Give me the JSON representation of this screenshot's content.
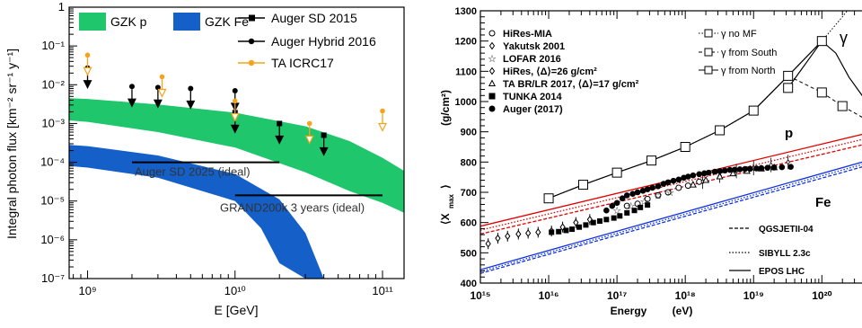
{
  "chart_data": [
    {
      "type": "scatter",
      "xlabel": "E [GeV]",
      "ylabel": "Integral photon flux [km⁻² sr⁻¹ y⁻¹]",
      "xscale": "log",
      "yscale": "log",
      "xlim": [
        750000000.0,
        140000000000.0
      ],
      "ylim": [
        1e-07,
        1
      ],
      "xticks": [
        {
          "v": 1000000000.0,
          "label": "10⁹"
        },
        {
          "v": 10000000000.0,
          "label": "10¹⁰"
        },
        {
          "v": 100000000000.0,
          "label": "10¹¹"
        }
      ],
      "yticks": [
        {
          "v": 1,
          "label": "1"
        },
        {
          "v": 0.1,
          "label": "10⁻¹"
        },
        {
          "v": 0.01,
          "label": "10⁻²"
        },
        {
          "v": 0.001,
          "label": "10⁻³"
        },
        {
          "v": 0.0001,
          "label": "10⁻⁴"
        },
        {
          "v": 1e-05,
          "label": "10⁻⁵"
        },
        {
          "v": 1e-06,
          "label": "10⁻⁶"
        },
        {
          "v": 1e-07,
          "label": "10⁻⁷"
        }
      ],
      "bands": [
        {
          "name": "GZK p",
          "color": "#1fc66c",
          "upper": [
            [
              750000000.0,
              0.0045
            ],
            [
              1000000000.0,
              0.0043
            ],
            [
              3000000000.0,
              0.0031
            ],
            [
              10000000000.0,
              0.0019
            ],
            [
              30000000000.0,
              0.00085
            ],
            [
              60000000000.0,
              0.00035
            ],
            [
              100000000000.0,
              0.00013
            ],
            [
              140000000000.0,
              6e-05
            ]
          ],
          "lower": [
            [
              750000000.0,
              0.0012
            ],
            [
              1000000000.0,
              0.0011
            ],
            [
              3000000000.0,
              0.0006
            ],
            [
              10000000000.0,
              0.00024
            ],
            [
              30000000000.0,
              5.5e-05
            ],
            [
              60000000000.0,
              1.8e-05
            ],
            [
              100000000000.0,
              9e-06
            ],
            [
              140000000000.0,
              5e-06
            ]
          ]
        },
        {
          "name": "GZK Fe",
          "color": "#1560c8",
          "upper": [
            [
              750000000.0,
              0.00028
            ],
            [
              1000000000.0,
              0.00026
            ],
            [
              3000000000.0,
              0.00015
            ],
            [
              10000000000.0,
              5e-05
            ],
            [
              20000000000.0,
              1.1e-05
            ],
            [
              30000000000.0,
              1.5e-06
            ],
            [
              40000000000.0,
              8e-08
            ],
            [
              45000000000.0,
              1e-08
            ]
          ],
          "lower": [
            [
              750000000.0,
              8e-05
            ],
            [
              1000000000.0,
              7.3e-05
            ],
            [
              3000000000.0,
              4e-05
            ],
            [
              10000000000.0,
              1e-05
            ],
            [
              15000000000.0,
              2e-06
            ],
            [
              20000000000.0,
              2.5e-07
            ],
            [
              30000000000.0,
              1e-08
            ]
          ]
        }
      ],
      "series": [
        {
          "name": "Auger SD 2015",
          "marker": "square",
          "color": "#000000",
          "points": [
            [
              10000000000.0,
              0.0019
            ],
            [
              20000000000.0,
              0.001
            ],
            [
              40000000000.0,
              0.0005
            ]
          ]
        },
        {
          "name": "Auger Hybrid 2016",
          "marker": "circle",
          "color": "#000000",
          "points": [
            [
              1000000000.0,
              0.027
            ],
            [
              2000000000.0,
              0.009
            ],
            [
              3000000000.0,
              0.0085
            ],
            [
              5000000000.0,
              0.008
            ],
            [
              10000000000.0,
              0.007
            ]
          ]
        },
        {
          "name": "TA ICRC17",
          "marker": "circle-open",
          "color": "#f5a31a",
          "points": [
            [
              1000000000.0,
              0.058
            ],
            [
              3200000000.0,
              0.016
            ],
            [
              10000000000.0,
              0.0038
            ],
            [
              32000000000.0,
              0.001
            ],
            [
              100000000000.0,
              0.0021
            ]
          ]
        }
      ],
      "limit_lines": [
        {
          "label": "Auger SD 2025 (ideal)",
          "y": 0.0001,
          "x": [
            2000000000.0,
            20000000000.0
          ]
        },
        {
          "label": "GRAND200k 3 years (ideal)",
          "y": 1.4e-05,
          "x": [
            10000000000.0,
            100000000000.0
          ]
        }
      ]
    },
    {
      "type": "line",
      "xlabel": "Energy",
      "xlabel_unit": "(eV)",
      "ylabel": "⟨X",
      "ylabel_sub": "max",
      "ylabel_tail": "⟩",
      "ylabel_unit": "(g/cm²)",
      "xscale": "log",
      "xlim": [
        1000000000000000.0,
        4.5e+20
      ],
      "ylim": [
        400,
        1300
      ],
      "xticks": [
        {
          "v": 1000000000000000.0,
          "label": "10¹⁵"
        },
        {
          "v": 1e+16,
          "label": "10¹⁶"
        },
        {
          "v": 1e+17,
          "label": "10¹⁷"
        },
        {
          "v": 1e+18,
          "label": "10¹⁸"
        },
        {
          "v": 1e+19,
          "label": "10¹⁹"
        },
        {
          "v": 1e+20,
          "label": "10²⁰"
        }
      ],
      "yticks": [
        400,
        500,
        600,
        700,
        800,
        900,
        1000,
        1100,
        1200,
        1300
      ],
      "legend_left": [
        "HiRes-MIA",
        "Yakutsk 2001",
        "LOFAR 2016",
        "HiRes, ⟨Δ⟩=26 g/cm²",
        "TA BR/LR 2017, ⟨Δ⟩=17 g/cm²",
        "TUNKA 2014",
        "Auger (2017)"
      ],
      "legend_gamma": [
        "γ no MF",
        "γ from South",
        "γ from North"
      ],
      "legend_models": [
        "QGSJETII-04",
        "SIBYLL 2.3c",
        "EPOS LHC"
      ],
      "annotations": [
        "p",
        "Fe",
        "γ"
      ],
      "gamma_curves": {
        "no_MF": [
          [
            1e+16,
            680
          ],
          [
            3.2e+16,
            725
          ],
          [
            1e+17,
            765
          ],
          [
            3.2e+17,
            805
          ],
          [
            1e+18,
            850
          ],
          [
            3.2e+18,
            905
          ],
          [
            1e+19,
            970
          ],
          [
            3.2e+19,
            1085
          ],
          [
            1e+20,
            1200
          ],
          [
            2e+20,
            1280
          ],
          [
            3e+20,
            1330
          ]
        ],
        "south": [
          [
            3.2e+19,
            1085
          ],
          [
            1e+20,
            1030
          ],
          [
            2e+20,
            985
          ],
          [
            4.5e+20,
            940
          ]
        ],
        "north": [
          [
            3.2e+19,
            1045
          ],
          [
            6e+19,
            1130
          ],
          [
            1e+20,
            1200
          ],
          [
            1.6e+20,
            1160
          ],
          [
            2.5e+20,
            1080
          ],
          [
            4.5e+20,
            1000
          ]
        ]
      },
      "model_lines": {
        "proton": {
          "color": "#e00000",
          "start": [
            [
              1000000000000000.0,
              562
            ],
            [
              1000000000000000.0,
              575
            ],
            [
              1000000000000000.0,
              588
            ]
          ],
          "end": [
            [
              4.5e+20,
              860
            ],
            [
              4.5e+20,
              878
            ],
            [
              4.5e+20,
              895
            ]
          ]
        },
        "iron": {
          "color": "#1030e0",
          "start": [
            [
              1000000000000000.0,
              432
            ],
            [
              1000000000000000.0,
              438
            ],
            [
              1000000000000000.0,
              444
            ]
          ],
          "end": [
            [
              4.5e+20,
              788
            ],
            [
              4.5e+20,
              796
            ],
            [
              4.5e+20,
              804
            ]
          ]
        }
      },
      "data_series": [
        {
          "name": "HiRes-MIA",
          "marker": "circle-open",
          "points": [
            [
              1.4e+17,
              655
            ],
            [
              2e+17,
              662
            ],
            [
              2.8e+17,
              678
            ],
            [
              4e+17,
              690
            ],
            [
              5.6e+17,
              700
            ],
            [
              8e+17,
              715
            ],
            [
              1.1e+18,
              722
            ],
            [
              1.6e+18,
              735
            ]
          ]
        },
        {
          "name": "Yakutsk 2001",
          "marker": "diamond-open",
          "points": [
            [
              1300000000000000.0,
              530
            ],
            [
              1800000000000000.0,
              548
            ],
            [
              2500000000000000.0,
              555
            ],
            [
              3600000000000000.0,
              562
            ],
            [
              5000000000000000.0,
              565
            ],
            [
              7000000000000000.0,
              568
            ],
            [
              1.1e+16,
              572
            ],
            [
              1.6e+16,
              585
            ],
            [
              2.5e+16,
              600
            ],
            [
              4e+16,
              610
            ]
          ]
        },
        {
          "name": "LOFAR 2016",
          "marker": "star",
          "points": [
            [
              1e+17,
              640
            ],
            [
              1.6e+17,
              655
            ],
            [
              2.5e+17,
              670
            ],
            [
              4e+17,
              690
            ],
            [
              6e+17,
              700
            ]
          ]
        },
        {
          "name": "HiRes",
          "marker": "diamond-small",
          "points": [
            [
              1.8e+18,
              735
            ],
            [
              3.2e+18,
              755
            ],
            [
              5.6e+18,
              770
            ],
            [
              1e+19,
              780
            ],
            [
              1.8e+19,
              790
            ],
            [
              3.2e+19,
              800
            ]
          ]
        },
        {
          "name": "TA BR/LR 2017",
          "marker": "triangle-open",
          "points": [
            [
              1.3e+18,
              725
            ],
            [
              2e+18,
              740
            ],
            [
              3.2e+18,
              752
            ],
            [
              5e+18,
              762
            ],
            [
              8e+18,
              770
            ],
            [
              1.3e+19,
              778
            ],
            [
              2e+19,
              782
            ]
          ]
        },
        {
          "name": "TUNKA 2014",
          "marker": "square",
          "points": [
            [
              1.1e+16,
              568
            ],
            [
              1.4e+16,
              570
            ],
            [
              1.8e+16,
              574
            ],
            [
              2.2e+16,
              578
            ],
            [
              2.8e+16,
              585
            ],
            [
              3.5e+16,
              592
            ],
            [
              4.5e+16,
              600
            ],
            [
              5.6e+16,
              605
            ],
            [
              7e+16,
              610
            ],
            [
              9e+16,
              615
            ],
            [
              1.1e+17,
              622
            ],
            [
              1.4e+17,
              632
            ],
            [
              1.8e+17,
              640
            ],
            [
              2.2e+17,
              650
            ],
            [
              2.8e+17,
              658
            ]
          ]
        },
        {
          "name": "Auger (2017)",
          "marker": "circle",
          "points": [
            [
              7e+16,
              640
            ],
            [
              8.5e+16,
              655
            ],
            [
              1e+17,
              665
            ],
            [
              1.2e+17,
              680
            ],
            [
              1.4e+17,
              690
            ],
            [
              1.7e+17,
              695
            ],
            [
              2e+17,
              700
            ],
            [
              2.4e+17,
              705
            ],
            [
              2.8e+17,
              710
            ],
            [
              3.3e+17,
              715
            ],
            [
              4e+17,
              720
            ],
            [
              4.8e+17,
              728
            ],
            [
              5.6e+17,
              733
            ],
            [
              6.7e+17,
              738
            ],
            [
              8e+17,
              742
            ],
            [
              9.5e+17,
              748
            ],
            [
              1.1e+18,
              752
            ],
            [
              1.3e+18,
              756
            ],
            [
              1.6e+18,
              760
            ],
            [
              1.9e+18,
              763
            ],
            [
              2.2e+18,
              765
            ],
            [
              2.7e+18,
              768
            ],
            [
              3.2e+18,
              770
            ],
            [
              3.8e+18,
              772
            ],
            [
              4.5e+18,
              774
            ],
            [
              5.3e+18,
              775
            ],
            [
              6.3e+18,
              776
            ],
            [
              7.5e+18,
              777
            ],
            [
              8.9e+18,
              778
            ],
            [
              1.1e+19,
              779
            ],
            [
              1.3e+19,
              780
            ],
            [
              1.6e+19,
              781
            ],
            [
              2e+19,
              782
            ],
            [
              2.6e+19,
              783
            ],
            [
              3.5e+19,
              784
            ]
          ]
        }
      ]
    }
  ]
}
